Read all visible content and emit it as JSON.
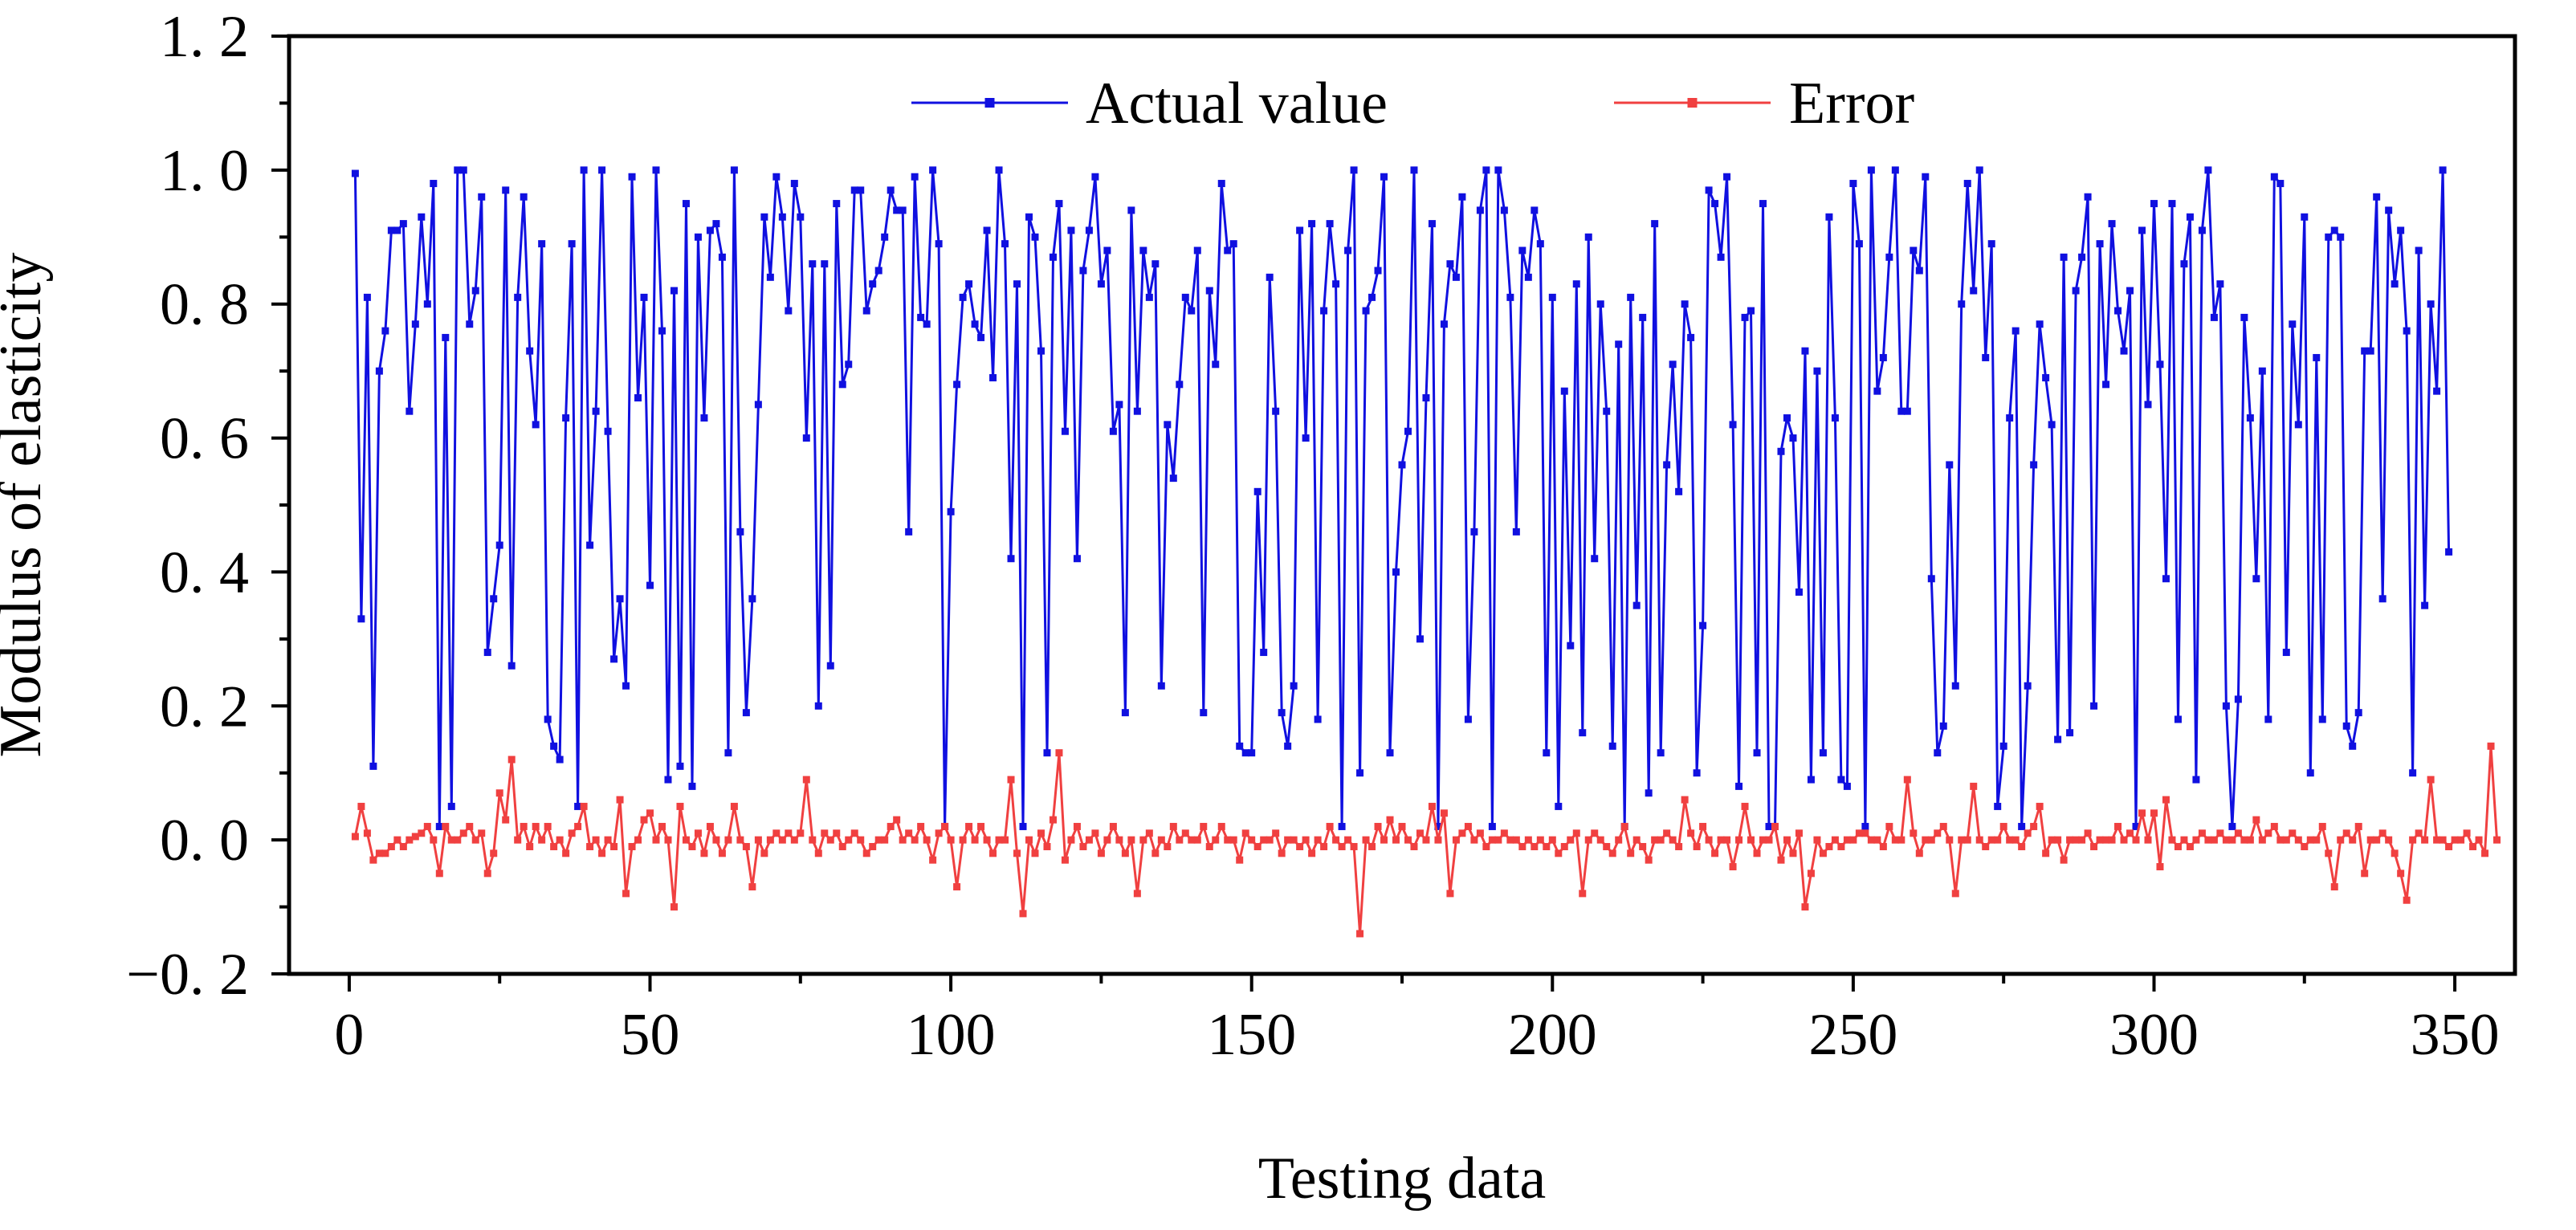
{
  "chart_data": {
    "type": "line",
    "title": "",
    "xlabel": "Testing data",
    "ylabel": "Modulus of elasticity",
    "xlim": [
      -10,
      360
    ],
    "ylim": [
      -0.2,
      1.2
    ],
    "xticks": [
      0,
      50,
      100,
      150,
      200,
      250,
      300,
      350
    ],
    "xtick_labels": [
      "0",
      "50",
      "100",
      "150",
      "200",
      "250",
      "300",
      "350"
    ],
    "yticks": [
      -0.2,
      0.0,
      0.2,
      0.4,
      0.6,
      0.8,
      1.0,
      1.2
    ],
    "ytick_labels": [
      "−0. 2",
      "0. 0",
      "0. 2",
      "0. 4",
      "0. 6",
      "0. 8",
      "1. 0",
      "1. 2"
    ],
    "legend_position": "top-center",
    "series": [
      {
        "name": "Actual value",
        "color": "#1010e0",
        "marker": "square",
        "x_start": 1,
        "values": [
          0.995,
          0.33,
          0.81,
          0.11,
          0.7,
          0.76,
          0.91,
          0.91,
          0.92,
          0.64,
          0.77,
          0.93,
          0.8,
          0.98,
          0.02,
          0.75,
          0.05,
          1.0,
          1.0,
          0.77,
          0.82,
          0.96,
          0.28,
          0.36,
          0.44,
          0.97,
          0.26,
          0.81,
          0.96,
          0.73,
          0.62,
          0.89,
          0.18,
          0.14,
          0.12,
          0.63,
          0.89,
          0.05,
          1.0,
          0.44,
          0.64,
          1.0,
          0.61,
          0.27,
          0.36,
          0.23,
          0.99,
          0.66,
          0.81,
          0.38,
          1.0,
          0.76,
          0.09,
          0.82,
          0.11,
          0.95,
          0.08,
          0.9,
          0.63,
          0.91,
          0.92,
          0.87,
          0.13,
          1.0,
          0.46,
          0.19,
          0.36,
          0.65,
          0.93,
          0.84,
          0.99,
          0.93,
          0.79,
          0.98,
          0.93,
          0.6,
          0.86,
          0.2,
          0.86,
          0.26,
          0.95,
          0.68,
          0.71,
          0.97,
          0.97,
          0.79,
          0.83,
          0.85,
          0.9,
          0.97,
          0.94,
          0.94,
          0.46,
          0.99,
          0.78,
          0.77,
          1.0,
          0.89,
          0.02,
          0.49,
          0.68,
          0.81,
          0.83,
          0.77,
          0.75,
          0.91,
          0.69,
          1.0,
          0.89,
          0.42,
          0.83,
          0.02,
          0.93,
          0.9,
          0.73,
          0.13,
          0.87,
          0.95,
          0.61,
          0.91,
          0.42,
          0.85,
          0.91,
          0.99,
          0.83,
          0.88,
          0.61,
          0.65,
          0.19,
          0.94,
          0.64,
          0.88,
          0.81,
          0.86,
          0.23,
          0.62,
          0.54,
          0.68,
          0.81,
          0.79,
          0.88,
          0.19,
          0.82,
          0.71,
          0.98,
          0.88,
          0.89,
          0.14,
          0.13,
          0.13,
          0.52,
          0.28,
          0.84,
          0.64,
          0.19,
          0.14,
          0.23,
          0.91,
          0.6,
          0.92,
          0.18,
          0.79,
          0.92,
          0.83,
          0.02,
          0.88,
          1.0,
          0.1,
          0.79,
          0.81,
          0.85,
          0.99,
          0.13,
          0.4,
          0.56,
          0.61,
          1.0,
          0.3,
          0.66,
          0.92,
          0.02,
          0.77,
          0.86,
          0.84,
          0.96,
          0.18,
          0.46,
          0.94,
          1.0,
          0.02,
          1.0,
          0.94,
          0.81,
          0.46,
          0.88,
          0.84,
          0.94,
          0.89,
          0.13,
          0.81,
          0.05,
          0.67,
          0.29,
          0.83,
          0.16,
          0.9,
          0.42,
          0.8,
          0.64,
          0.14,
          0.74,
          0.02,
          0.81,
          0.35,
          0.78,
          0.07,
          0.92,
          0.13,
          0.56,
          0.71,
          0.52,
          0.8,
          0.75,
          0.1,
          0.32,
          0.97,
          0.95,
          0.87,
          0.99,
          0.62,
          0.08,
          0.78,
          0.79,
          0.13,
          0.95,
          0.02,
          0.02,
          0.58,
          0.63,
          0.6,
          0.37,
          0.73,
          0.09,
          0.7,
          0.13,
          0.93,
          0.63,
          0.09,
          0.08,
          0.98,
          0.89,
          0.02,
          1.0,
          0.67,
          0.72,
          0.87,
          1.0,
          0.64,
          0.64,
          0.88,
          0.85,
          0.99,
          0.39,
          0.13,
          0.17,
          0.56,
          0.23,
          0.8,
          0.98,
          0.82,
          1.0,
          0.72,
          0.89,
          0.05,
          0.14,
          0.63,
          0.76,
          0.02,
          0.23,
          0.56,
          0.77,
          0.69,
          0.62,
          0.15,
          0.87,
          0.16,
          0.82,
          0.87,
          0.96,
          0.2,
          0.89,
          0.68,
          0.92,
          0.79,
          0.73,
          0.82,
          0.02,
          0.91,
          0.65,
          0.95,
          0.71,
          0.39,
          0.95,
          0.18,
          0.86,
          0.93,
          0.09,
          0.91,
          1.0,
          0.78,
          0.83,
          0.2,
          0.02,
          0.21,
          0.78,
          0.63,
          0.39,
          0.7,
          0.18,
          0.99,
          0.98,
          0.28,
          0.77,
          0.62,
          0.93,
          0.1,
          0.72,
          0.18,
          0.9,
          0.91,
          0.9,
          0.17,
          0.14,
          0.19,
          0.73,
          0.73,
          0.96,
          0.36,
          0.94,
          0.83,
          0.91,
          0.76,
          0.1,
          0.88,
          0.35,
          0.8,
          0.67,
          1.0,
          0.43
        ]
      },
      {
        "name": "Error",
        "color": "#f04040",
        "marker": "square",
        "x_start": 1,
        "values": [
          0.005,
          0.05,
          0.01,
          -0.03,
          -0.02,
          -0.02,
          -0.01,
          0.0,
          -0.01,
          0.0,
          0.005,
          0.01,
          0.02,
          0.0,
          -0.05,
          0.02,
          0.0,
          0.0,
          0.01,
          0.02,
          0.0,
          0.01,
          -0.05,
          -0.02,
          0.07,
          0.03,
          0.12,
          0.0,
          0.02,
          -0.01,
          0.02,
          0.0,
          0.02,
          -0.01,
          0.0,
          -0.02,
          0.01,
          0.02,
          0.05,
          -0.01,
          0.0,
          -0.02,
          0.0,
          -0.01,
          0.06,
          -0.08,
          -0.01,
          0.0,
          0.03,
          0.04,
          0.0,
          0.02,
          0.0,
          -0.1,
          0.05,
          0.0,
          -0.01,
          0.01,
          -0.02,
          0.02,
          0.0,
          -0.02,
          0.0,
          0.05,
          0.0,
          -0.01,
          -0.07,
          0.0,
          -0.02,
          0.0,
          0.01,
          0.0,
          0.01,
          0.0,
          0.01,
          0.09,
          0.0,
          -0.02,
          0.01,
          0.0,
          0.01,
          -0.01,
          0.0,
          0.01,
          0.0,
          -0.02,
          -0.01,
          0.0,
          0.0,
          0.02,
          0.03,
          0.0,
          0.01,
          0.0,
          0.02,
          0.0,
          -0.03,
          0.01,
          0.02,
          0.0,
          -0.07,
          0.0,
          0.02,
          0.0,
          0.02,
          0.0,
          -0.02,
          0.0,
          0.0,
          0.09,
          -0.02,
          -0.11,
          0.0,
          -0.02,
          0.01,
          -0.01,
          0.03,
          0.13,
          -0.03,
          0.0,
          0.02,
          -0.01,
          0.0,
          0.01,
          -0.02,
          0.0,
          0.02,
          0.0,
          -0.02,
          0.0,
          -0.08,
          0.0,
          0.01,
          -0.02,
          0.0,
          -0.01,
          0.02,
          0.0,
          0.01,
          0.0,
          0.0,
          0.02,
          -0.01,
          0.0,
          0.02,
          0.0,
          0.0,
          -0.03,
          0.01,
          0.0,
          -0.01,
          0.0,
          0.0,
          0.01,
          -0.02,
          0.0,
          0.0,
          -0.01,
          0.0,
          -0.02,
          0.0,
          -0.01,
          0.02,
          0.0,
          -0.01,
          0.0,
          -0.01,
          -0.14,
          0.0,
          -0.01,
          0.02,
          0.0,
          0.03,
          0.0,
          0.02,
          0.0,
          -0.01,
          0.01,
          0.0,
          0.05,
          0.0,
          0.04,
          -0.08,
          0.0,
          0.01,
          0.02,
          0.0,
          0.01,
          -0.01,
          0.0,
          0.0,
          0.01,
          0.0,
          0.0,
          -0.01,
          0.0,
          -0.01,
          0.0,
          -0.01,
          0.0,
          -0.02,
          -0.01,
          0.0,
          0.01,
          -0.08,
          0.0,
          0.01,
          0.0,
          -0.01,
          -0.02,
          0.0,
          0.02,
          -0.02,
          0.0,
          -0.01,
          -0.03,
          0.0,
          0.0,
          0.01,
          0.0,
          -0.01,
          0.06,
          0.01,
          -0.01,
          0.02,
          0.0,
          -0.02,
          0.0,
          0.0,
          -0.04,
          0.0,
          0.05,
          0.0,
          -0.02,
          0.0,
          0.0,
          0.02,
          -0.03,
          0.0,
          -0.02,
          0.01,
          -0.1,
          -0.05,
          0.0,
          -0.02,
          -0.01,
          0.0,
          -0.01,
          0.0,
          0.0,
          0.01,
          0.01,
          0.0,
          0.0,
          -0.01,
          0.02,
          0.0,
          0.0,
          0.09,
          0.01,
          -0.02,
          0.0,
          0.0,
          0.01,
          0.02,
          0.0,
          -0.08,
          0.0,
          0.0,
          0.08,
          0.0,
          -0.01,
          0.0,
          0.0,
          0.02,
          0.0,
          0.0,
          -0.01,
          0.01,
          0.02,
          0.05,
          -0.02,
          0.0,
          0.0,
          -0.03,
          0.0,
          0.0,
          0.0,
          0.01,
          -0.01,
          0.0,
          0.0,
          0.0,
          0.02,
          0.0,
          0.01,
          0.0,
          0.04,
          0.0,
          0.04,
          -0.04,
          0.06,
          0.0,
          -0.01,
          0.0,
          -0.01,
          0.0,
          0.01,
          0.0,
          0.0,
          0.01,
          0.0,
          0.0,
          0.01,
          0.0,
          0.0,
          0.03,
          0.0,
          0.01,
          0.02,
          0.0,
          0.0,
          0.01,
          0.0,
          -0.01,
          0.0,
          0.0,
          0.02,
          -0.02,
          -0.07,
          0.0,
          0.01,
          0.0,
          0.02,
          -0.05,
          0.0,
          0.0,
          0.01,
          0.0,
          -0.02,
          -0.05,
          -0.09,
          0.0,
          0.01,
          0.0,
          0.09,
          0.0,
          0.0,
          -0.01,
          0.0,
          0.0,
          0.01,
          -0.01,
          0.0,
          -0.02,
          0.14,
          0.0
        ]
      }
    ]
  }
}
